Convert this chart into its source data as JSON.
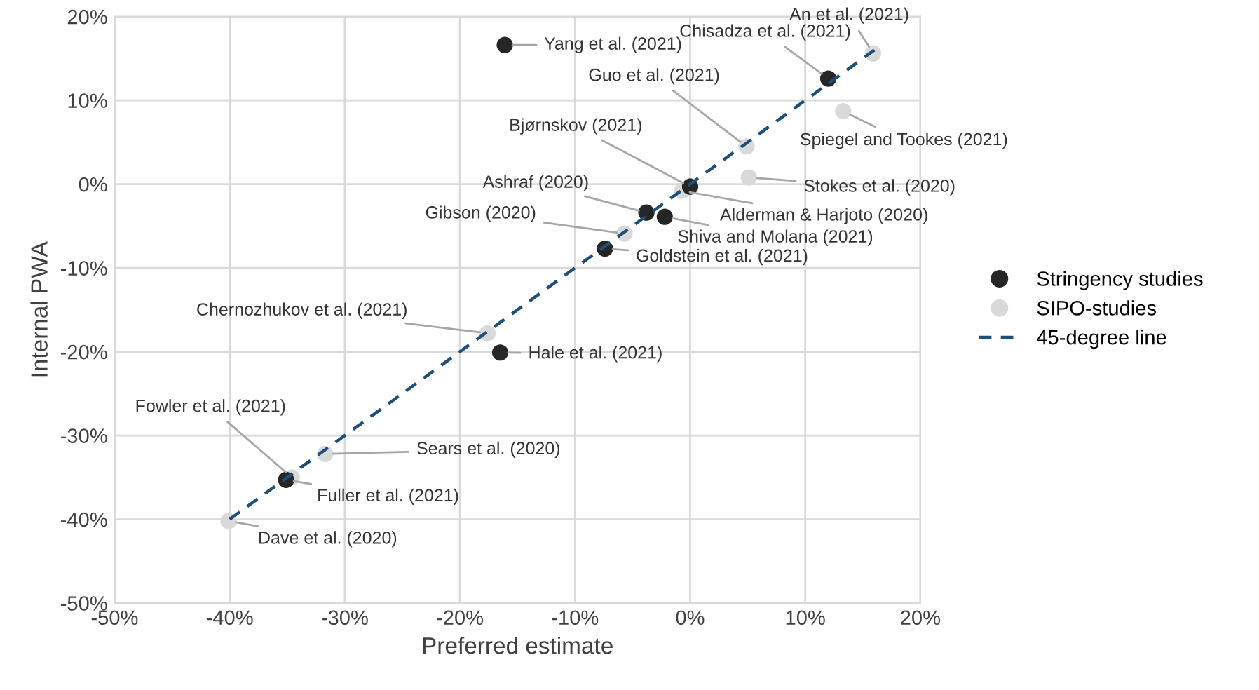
{
  "chart_data": {
    "type": "scatter",
    "xlabel": "Preferred estimate",
    "ylabel": "Internal PWA",
    "xlim": [
      -50,
      20
    ],
    "ylim": [
      -50,
      20
    ],
    "xticks": [
      {
        "value": -50,
        "label": "-50%"
      },
      {
        "value": -40,
        "label": "-40%"
      },
      {
        "value": -30,
        "label": "-30%"
      },
      {
        "value": -20,
        "label": "-20%"
      },
      {
        "value": -10,
        "label": "-10%"
      },
      {
        "value": 0,
        "label": "0%"
      },
      {
        "value": 10,
        "label": "10%"
      },
      {
        "value": 20,
        "label": "20%"
      }
    ],
    "yticks": [
      {
        "value": -50,
        "label": "-50%"
      },
      {
        "value": -40,
        "label": "-40%"
      },
      {
        "value": -30,
        "label": "-30%"
      },
      {
        "value": -20,
        "label": "-20%"
      },
      {
        "value": -10,
        "label": "-10%"
      },
      {
        "value": 0,
        "label": "0%"
      },
      {
        "value": 10,
        "label": "10%"
      },
      {
        "value": 20,
        "label": "20%"
      }
    ],
    "grid": true,
    "legend": "right",
    "marker": "circle",
    "series": [
      {
        "name": "Stringency studies",
        "color": "#262626",
        "x": [
          -16.1,
          12.0,
          0,
          -3.8,
          -2.2,
          -7.4,
          -16.5,
          -35.1
        ],
        "values": [
          16.6,
          12.6,
          -0.3,
          -3.4,
          -3.9,
          -7.7,
          -20.1,
          -35.3
        ]
      },
      {
        "name": "SIPO-studies",
        "color": "#d9d9d9",
        "x": [
          15.9,
          13.3,
          4.9,
          5.1,
          -0.7,
          -5.7,
          -17.6,
          -31.7,
          -34.6,
          -40.1
        ],
        "values": [
          15.6,
          8.7,
          4.5,
          0.8,
          -0.8,
          -5.9,
          -17.8,
          -32.2,
          -35.0,
          -40.2
        ]
      },
      {
        "name": "45-degree line",
        "type": "line",
        "color": "#1f4e79",
        "line_style": "dashed",
        "marker": "none",
        "x": [
          -40,
          16
        ],
        "values": [
          -40,
          16
        ]
      }
    ],
    "annotations": [
      {
        "text": "Yang et al. (2021)",
        "x": -16.1,
        "y": 16.6
      },
      {
        "text": "Chisadza et al. (2021)",
        "x": 12.0,
        "y": 12.6
      },
      {
        "text": "An et al. (2021)",
        "x": 15.9,
        "y": 15.6
      },
      {
        "text": "Guo et al. (2021)",
        "x": 4.9,
        "y": 4.5
      },
      {
        "text": "Spiegel and Tookes (2021)",
        "x": 13.3,
        "y": 8.7
      },
      {
        "text": "Bjørnskov (2021)",
        "x": 0,
        "y": -0.3
      },
      {
        "text": "Stokes et al. (2020)",
        "x": 5.1,
        "y": 0.8
      },
      {
        "text": "Ashraf (2020)",
        "x": -3.8,
        "y": -3.4
      },
      {
        "text": "Alderman & Harjoto (2020)",
        "x": -0.7,
        "y": -0.8
      },
      {
        "text": "Gibson (2020)",
        "x": -5.7,
        "y": -5.9
      },
      {
        "text": "Shiva and Molana (2021)",
        "x": -2.2,
        "y": -3.9
      },
      {
        "text": "Goldstein et al. (2021)",
        "x": -7.4,
        "y": -7.7
      },
      {
        "text": "Chernozhukov et al. (2021)",
        "x": -17.6,
        "y": -17.8
      },
      {
        "text": "Hale et al. (2021)",
        "x": -16.5,
        "y": -20.1
      },
      {
        "text": "Fowler et al. (2021)",
        "x": -34.6,
        "y": -35.0
      },
      {
        "text": "Sears et al. (2020)",
        "x": -31.7,
        "y": -32.2
      },
      {
        "text": "Fuller et al. (2021)",
        "x": -35.1,
        "y": -35.3
      },
      {
        "text": "Dave et al. (2020)",
        "x": -40.1,
        "y": -40.2
      }
    ]
  }
}
